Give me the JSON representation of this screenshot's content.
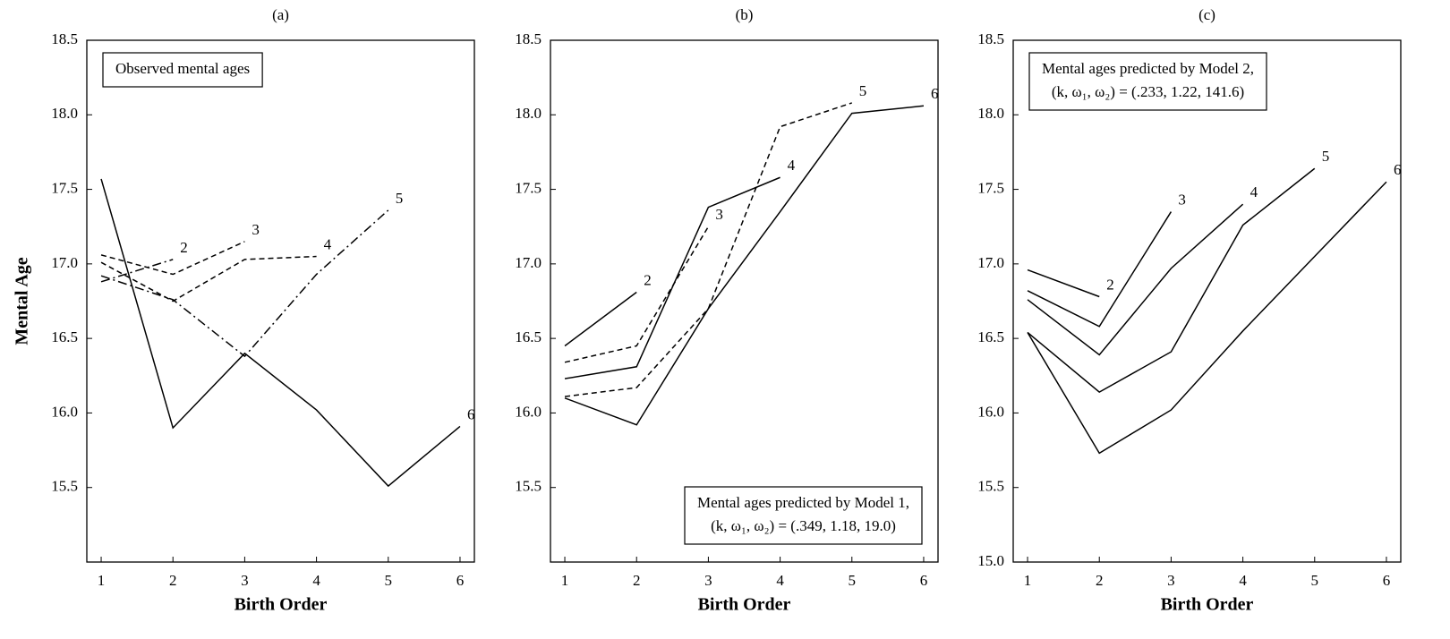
{
  "chart_data": [
    {
      "type": "line",
      "title": "(a)",
      "xlabel": "Birth Order",
      "ylabel": "Mental Age",
      "x": [
        1,
        2,
        3,
        4,
        5,
        6
      ],
      "xlim": [
        0.8,
        6.2
      ],
      "xticks": [
        1,
        2,
        3,
        4,
        5,
        6
      ],
      "ylim": [
        15.0,
        18.5
      ],
      "yticks": [
        {
          "value": 15.5,
          "label": "15.5"
        },
        {
          "value": 16,
          "label": "16.0"
        },
        {
          "value": 16.5,
          "label": "16.5"
        },
        {
          "value": 17,
          "label": "17.0"
        },
        {
          "value": 17.5,
          "label": "17.5"
        },
        {
          "value": 18,
          "label": "18.0"
        },
        {
          "value": 18.5,
          "label": "18.5"
        }
      ],
      "annotation": [
        "Observed mental ages"
      ],
      "annotation_corner": "top-left",
      "series": [
        {
          "name": "2",
          "color": "#000000",
          "style": "dashdot",
          "values": [
            16.88,
            17.03,
            null,
            null,
            null,
            null
          ]
        },
        {
          "name": "3",
          "color": "#000000",
          "style": "dashed",
          "values": [
            17.06,
            16.93,
            17.15,
            null,
            null,
            null
          ]
        },
        {
          "name": "4",
          "color": "#000000",
          "style": "dashed",
          "values": [
            17.01,
            16.75,
            17.03,
            17.05,
            null,
            null
          ]
        },
        {
          "name": "5",
          "color": "#000000",
          "style": "dashdot",
          "values": [
            16.92,
            16.76,
            16.38,
            16.93,
            17.36,
            null
          ]
        },
        {
          "name": "6",
          "color": "#000000",
          "style": "solid",
          "values": [
            17.57,
            15.9,
            16.4,
            16.02,
            15.51,
            15.91
          ]
        }
      ]
    },
    {
      "type": "line",
      "title": "(b)",
      "xlabel": "Birth Order",
      "x": [
        1,
        2,
        3,
        4,
        5,
        6
      ],
      "xlim": [
        0.8,
        6.2
      ],
      "xticks": [
        1,
        2,
        3,
        4,
        5,
        6
      ],
      "ylim": [
        15.0,
        18.5
      ],
      "yticks": [
        {
          "value": 15.5,
          "label": "15.5"
        },
        {
          "value": 16,
          "label": "16.0"
        },
        {
          "value": 16.5,
          "label": "16.5"
        },
        {
          "value": 17,
          "label": "17.0"
        },
        {
          "value": 17.5,
          "label": "17.5"
        },
        {
          "value": 18,
          "label": "18.0"
        },
        {
          "value": 18.5,
          "label": "18.5"
        }
      ],
      "annotation": [
        "Mental ages predicted by Model 1,",
        "(k, ω₁, ω₂) = (.349, 1.18, 19.0)"
      ],
      "annotation_corner": "bottom-right",
      "series": [
        {
          "name": "2",
          "color": "#000000",
          "style": "solid",
          "values": [
            16.45,
            16.81,
            null,
            null,
            null,
            null
          ]
        },
        {
          "name": "3",
          "color": "#000000",
          "style": "dashed",
          "values": [
            16.34,
            16.45,
            17.25,
            null,
            null,
            null
          ]
        },
        {
          "name": "4",
          "color": "#000000",
          "style": "solid",
          "values": [
            16.23,
            16.31,
            17.38,
            17.58,
            null,
            null
          ]
        },
        {
          "name": "5",
          "color": "#000000",
          "style": "dashed",
          "values": [
            16.11,
            16.17,
            16.7,
            17.92,
            18.08,
            null
          ]
        },
        {
          "name": "6",
          "color": "#000000",
          "style": "solid",
          "values": [
            16.1,
            15.92,
            16.7,
            17.35,
            18.01,
            18.06
          ]
        }
      ]
    },
    {
      "type": "line",
      "title": "(c)",
      "xlabel": "Birth Order",
      "x": [
        1,
        2,
        3,
        4,
        5,
        6
      ],
      "xlim": [
        0.8,
        6.2
      ],
      "xticks": [
        1,
        2,
        3,
        4,
        5,
        6
      ],
      "ylim": [
        15.0,
        18.5
      ],
      "yticks": [
        {
          "value": 15,
          "label": "15.0"
        },
        {
          "value": 15.5,
          "label": "15.5"
        },
        {
          "value": 16,
          "label": "16.0"
        },
        {
          "value": 16.5,
          "label": "16.5"
        },
        {
          "value": 17,
          "label": "17.0"
        },
        {
          "value": 17.5,
          "label": "17.5"
        },
        {
          "value": 18,
          "label": "18.0"
        },
        {
          "value": 18.5,
          "label": "18.5"
        }
      ],
      "annotation": [
        "Mental ages predicted by Model 2,",
        "(k, ω₁, ω₂) = (.233, 1.22, 141.6)"
      ],
      "annotation_corner": "top-left",
      "series": [
        {
          "name": "2",
          "color": "#000000",
          "style": "solid",
          "values": [
            16.96,
            16.78,
            null,
            null,
            null,
            null
          ]
        },
        {
          "name": "3",
          "color": "#000000",
          "style": "solid",
          "values": [
            16.82,
            16.58,
            17.35,
            null,
            null,
            null
          ]
        },
        {
          "name": "4",
          "color": "#000000",
          "style": "solid",
          "values": [
            16.76,
            16.39,
            16.97,
            17.4,
            null,
            null
          ]
        },
        {
          "name": "5",
          "color": "#000000",
          "style": "solid",
          "values": [
            16.54,
            16.14,
            16.41,
            17.26,
            17.64,
            null
          ]
        },
        {
          "name": "6",
          "color": "#000000",
          "style": "solid",
          "values": [
            16.54,
            15.73,
            16.02,
            16.55,
            17.05,
            17.55
          ]
        }
      ]
    }
  ]
}
